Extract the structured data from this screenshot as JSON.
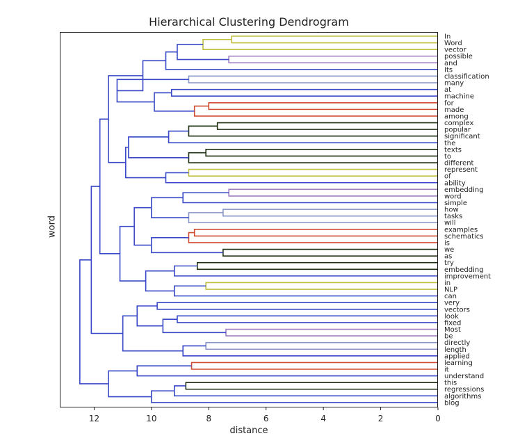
{
  "chart_data": {
    "type": "dendrogram",
    "title": "Hierarchical Clustering Dendrogram",
    "xlabel": "distance",
    "ylabel": "word",
    "xlim": [
      13.2,
      0
    ],
    "xticks": [
      "12",
      "10",
      "8",
      "6",
      "4",
      "2",
      "0"
    ],
    "grid": false,
    "leaves": [
      "In",
      "Word",
      "vector",
      "possible",
      "and",
      "Its",
      "classification",
      "many",
      "at",
      "machine",
      "for",
      "made",
      "among",
      "complex",
      "popular",
      "significant",
      "the",
      "texts",
      "to",
      "different",
      "represent",
      "of",
      "ability",
      "embedding",
      "word",
      "simple",
      "how",
      "tasks",
      "will",
      "examples",
      "schematics",
      "is",
      "we",
      "as",
      "try",
      "embedding",
      "improvement",
      "in",
      "NLP",
      "can",
      "very",
      "vectors",
      "look",
      "fixed",
      "Most",
      "be",
      "directly",
      "length",
      "applied",
      "learning",
      "it",
      "understand",
      "this",
      "regressions",
      "algorithms",
      "blog"
    ],
    "merges": [
      {
        "id": "m1",
        "a": 0,
        "b": 1,
        "height": 7.2,
        "color": "#bfbf40"
      },
      {
        "id": "m2",
        "a": "m1",
        "b": 2,
        "height": 8.2,
        "color": "#bfbf40"
      },
      {
        "id": "m3",
        "a": 3,
        "b": 4,
        "height": 7.3,
        "color": "#9f7fbf"
      },
      {
        "id": "m4",
        "a": "m2",
        "b": "m3",
        "height": 9.1,
        "color": "#3848c8"
      },
      {
        "id": "m5",
        "a": "m4",
        "b": 5,
        "height": 9.5,
        "color": "#3848c8"
      },
      {
        "id": "m6",
        "a": 6,
        "b": 7,
        "height": 8.7,
        "color": "#8894c8"
      },
      {
        "id": "m7",
        "a": 8,
        "b": 9,
        "height": 9.3,
        "color": "#3848c8"
      },
      {
        "id": "m8",
        "a": 10,
        "b": 11,
        "height": 8.0,
        "color": "#d04a30"
      },
      {
        "id": "m9",
        "a": "m8",
        "b": 12,
        "height": 8.5,
        "color": "#d04a30"
      },
      {
        "id": "m10",
        "a": "m7",
        "b": "m9",
        "height": 9.9,
        "color": "#3848c8"
      },
      {
        "id": "m11",
        "a": "m6",
        "b": "m10",
        "height": 11.2,
        "color": "#3848c8"
      },
      {
        "id": "m12",
        "a": "m5",
        "b": "m11",
        "height": 10.3,
        "color": "#3848c8"
      },
      {
        "id": "m13",
        "a": 13,
        "b": 14,
        "height": 7.7,
        "color": "#1e3010"
      },
      {
        "id": "m14",
        "a": "m13",
        "b": 15,
        "height": 8.7,
        "color": "#1e3010"
      },
      {
        "id": "m15",
        "a": "m14",
        "b": 16,
        "height": 9.4,
        "color": "#3848c8"
      },
      {
        "id": "m16",
        "a": 17,
        "b": 18,
        "height": 8.1,
        "color": "#1e3010"
      },
      {
        "id": "m17",
        "a": "m16",
        "b": 19,
        "height": 8.7,
        "color": "#1e3010"
      },
      {
        "id": "m18",
        "a": "m15",
        "b": "m17",
        "height": 10.8,
        "color": "#3848c8"
      },
      {
        "id": "m19",
        "a": 20,
        "b": 21,
        "height": 8.7,
        "color": "#bfbf40"
      },
      {
        "id": "m20",
        "a": "m19",
        "b": 22,
        "height": 9.5,
        "color": "#3848c8"
      },
      {
        "id": "m21",
        "a": "m18",
        "b": "m20",
        "height": 10.9,
        "color": "#3848c8"
      },
      {
        "id": "m22",
        "a": "m12",
        "b": "m21",
        "height": 11.5,
        "color": "#3848c8"
      },
      {
        "id": "m23",
        "a": 23,
        "b": 24,
        "height": 7.3,
        "color": "#9f7fbf"
      },
      {
        "id": "m24",
        "a": "m23",
        "b": 25,
        "height": 8.9,
        "color": "#3848c8"
      },
      {
        "id": "m25",
        "a": 26,
        "b": 27,
        "height": 7.5,
        "color": "#8894c8"
      },
      {
        "id": "m26",
        "a": "m25",
        "b": 28,
        "height": 8.7,
        "color": "#8894c8"
      },
      {
        "id": "m27",
        "a": "m24",
        "b": "m26",
        "height": 10.0,
        "color": "#3848c8"
      },
      {
        "id": "m28",
        "a": 29,
        "b": 30,
        "height": 8.5,
        "color": "#d04a30"
      },
      {
        "id": "m29",
        "a": "m28",
        "b": 31,
        "height": 8.7,
        "color": "#d04a30"
      },
      {
        "id": "m30",
        "a": 32,
        "b": 33,
        "height": 7.5,
        "color": "#1e3010"
      },
      {
        "id": "m31",
        "a": "m29",
        "b": "m30",
        "height": 10.0,
        "color": "#3848c8"
      },
      {
        "id": "m32",
        "a": "m27",
        "b": "m31",
        "height": 10.6,
        "color": "#3848c8"
      },
      {
        "id": "m33",
        "a": 34,
        "b": 35,
        "height": 8.4,
        "color": "#1e3010"
      },
      {
        "id": "m34",
        "a": "m33",
        "b": 36,
        "height": 9.2,
        "color": "#3848c8"
      },
      {
        "id": "m35",
        "a": 37,
        "b": 38,
        "height": 8.1,
        "color": "#bfbf40"
      },
      {
        "id": "m36",
        "a": "m35",
        "b": 39,
        "height": 9.2,
        "color": "#3848c8"
      },
      {
        "id": "m37",
        "a": "m34",
        "b": "m36",
        "height": 10.2,
        "color": "#3848c8"
      },
      {
        "id": "m38",
        "a": "m32",
        "b": "m37",
        "height": 11.1,
        "color": "#3848c8"
      },
      {
        "id": "m39",
        "a": "m22",
        "b": "m38",
        "height": 11.8,
        "color": "#3848c8"
      },
      {
        "id": "m40",
        "a": 40,
        "b": 41,
        "height": 9.8,
        "color": "#3848c8"
      },
      {
        "id": "m41",
        "a": 42,
        "b": 43,
        "height": 9.1,
        "color": "#3848c8"
      },
      {
        "id": "m42",
        "a": 44,
        "b": 45,
        "height": 7.4,
        "color": "#9f7fbf"
      },
      {
        "id": "m43",
        "a": "m41",
        "b": "m42",
        "height": 9.6,
        "color": "#3848c8"
      },
      {
        "id": "m44",
        "a": "m40",
        "b": "m43",
        "height": 10.5,
        "color": "#3848c8"
      },
      {
        "id": "m45",
        "a": 46,
        "b": 47,
        "height": 8.1,
        "color": "#8894c8"
      },
      {
        "id": "m46",
        "a": "m45",
        "b": 48,
        "height": 8.9,
        "color": "#3848c8"
      },
      {
        "id": "m47",
        "a": "m44",
        "b": "m46",
        "height": 11.0,
        "color": "#3848c8"
      },
      {
        "id": "m48",
        "a": "m39",
        "b": "m47",
        "height": 12.1,
        "color": "#3848c8"
      },
      {
        "id": "m49",
        "a": 49,
        "b": 50,
        "height": 8.6,
        "color": "#d04a30"
      },
      {
        "id": "m50",
        "a": "m49",
        "b": 51,
        "height": 10.5,
        "color": "#3848c8"
      },
      {
        "id": "m51",
        "a": 52,
        "b": 53,
        "height": 8.8,
        "color": "#1e3010"
      },
      {
        "id": "m52",
        "a": "m51",
        "b": 54,
        "height": 9.2,
        "color": "#3848c8"
      },
      {
        "id": "m53",
        "a": "m52",
        "b": 55,
        "height": 10.0,
        "color": "#3848c8"
      },
      {
        "id": "m54",
        "a": "m50",
        "b": "m53",
        "height": 11.5,
        "color": "#3848c8"
      },
      {
        "id": "m55",
        "a": "m48",
        "b": "m54",
        "height": 12.5,
        "color": "#3848c8"
      }
    ]
  }
}
